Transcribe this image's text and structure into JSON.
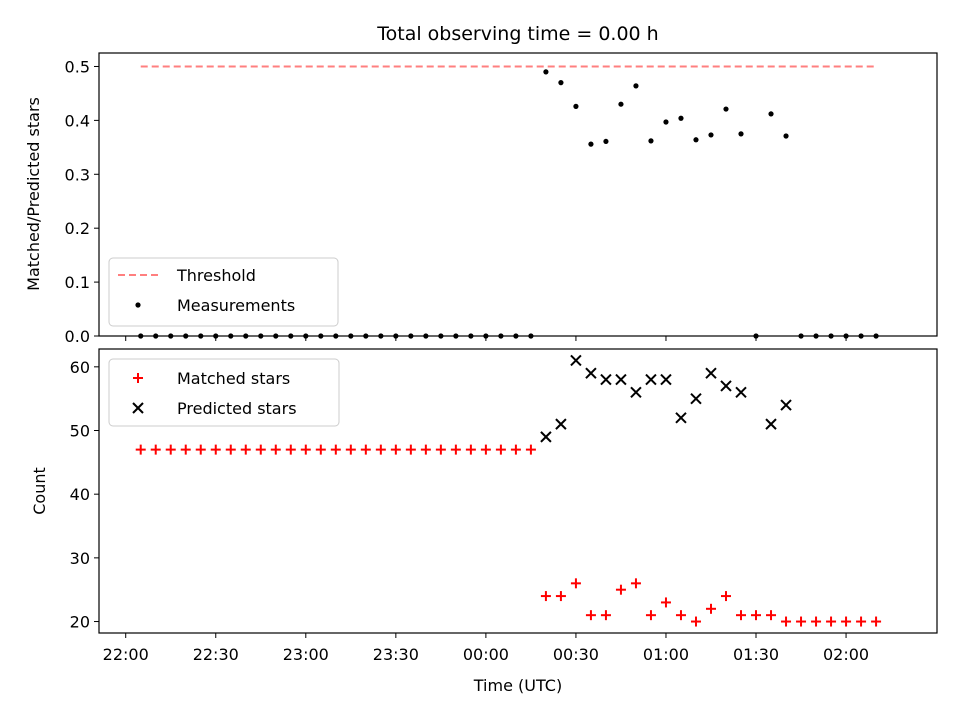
{
  "chart_data": [
    {
      "type": "scatter",
      "title": "Total observing time = 0.00 h",
      "xlabel": "",
      "ylabel": "Matched/Predicted stars",
      "ylim": [
        0,
        0.525
      ],
      "yticks": [
        0.0,
        0.1,
        0.2,
        0.3,
        0.4,
        0.5
      ],
      "ytick_labels": [
        "0.0",
        "0.1",
        "0.2",
        "0.3",
        "0.4",
        "0.5"
      ],
      "legend_position": "lower-left",
      "series": [
        {
          "name": "Threshold",
          "kind": "dashed-line",
          "color": "#ff7f7f",
          "x": [
            "22:05",
            "02:10"
          ],
          "y": [
            0.5,
            0.5
          ]
        },
        {
          "name": "Measurements",
          "kind": "dots",
          "color": "#000000",
          "x": [
            "22:05",
            "22:10",
            "22:15",
            "22:20",
            "22:25",
            "22:30",
            "22:35",
            "22:40",
            "22:45",
            "22:50",
            "22:55",
            "23:00",
            "23:05",
            "23:10",
            "23:15",
            "23:20",
            "23:25",
            "23:30",
            "23:35",
            "23:40",
            "23:45",
            "23:50",
            "23:55",
            "00:00",
            "00:05",
            "00:10",
            "00:15",
            "00:20",
            "00:25",
            "00:30",
            "00:35",
            "00:40",
            "00:45",
            "00:50",
            "00:55",
            "01:00",
            "01:05",
            "01:10",
            "01:15",
            "01:20",
            "01:25",
            "01:30",
            "01:35",
            "01:40",
            "01:45",
            "01:50",
            "01:55",
            "02:00",
            "02:05",
            "02:10"
          ],
          "y": [
            0,
            0,
            0,
            0,
            0,
            0,
            0,
            0,
            0,
            0,
            0,
            0,
            0,
            0,
            0,
            0,
            0,
            0,
            0,
            0,
            0,
            0,
            0,
            0,
            0,
            0,
            0,
            0.49,
            0.47,
            0.426,
            0.356,
            0.361,
            0.43,
            0.464,
            0.362,
            0.397,
            0.404,
            0.364,
            0.373,
            0.421,
            0.375,
            0,
            0.412,
            0.371,
            0,
            0,
            0,
            0,
            0,
            0
          ]
        }
      ]
    },
    {
      "type": "scatter",
      "title": "",
      "xlabel": "Time (UTC)",
      "ylabel": "Count",
      "ylim": [
        18.2,
        62.8
      ],
      "yticks": [
        20,
        30,
        40,
        50,
        60
      ],
      "ytick_labels": [
        "20",
        "30",
        "40",
        "50",
        "60"
      ],
      "xtick_labels": [
        "22:00",
        "22:30",
        "23:00",
        "23:30",
        "00:00",
        "00:30",
        "01:00",
        "01:30",
        "02:00"
      ],
      "legend_position": "upper-left",
      "series": [
        {
          "name": "Matched stars",
          "marker": "+",
          "color": "#ff0000",
          "x": [
            "22:05",
            "22:10",
            "22:15",
            "22:20",
            "22:25",
            "22:30",
            "22:35",
            "22:40",
            "22:45",
            "22:50",
            "22:55",
            "23:00",
            "23:05",
            "23:10",
            "23:15",
            "23:20",
            "23:25",
            "23:30",
            "23:35",
            "23:40",
            "23:45",
            "23:50",
            "23:55",
            "00:00",
            "00:05",
            "00:10",
            "00:15",
            "00:20",
            "00:25",
            "00:30",
            "00:35",
            "00:40",
            "00:45",
            "00:50",
            "00:55",
            "01:00",
            "01:05",
            "01:10",
            "01:15",
            "01:20",
            "01:25",
            "01:30",
            "01:35",
            "01:40",
            "01:45",
            "01:50",
            "01:55",
            "02:00",
            "02:05",
            "02:10"
          ],
          "y": [
            47,
            47,
            47,
            47,
            47,
            47,
            47,
            47,
            47,
            47,
            47,
            47,
            47,
            47,
            47,
            47,
            47,
            47,
            47,
            47,
            47,
            47,
            47,
            47,
            47,
            47,
            47,
            24,
            24,
            26,
            21,
            21,
            25,
            26,
            21,
            23,
            21,
            20,
            22,
            24,
            21,
            21,
            21,
            20,
            20,
            20,
            20,
            20,
            20,
            20
          ]
        },
        {
          "name": "Predicted stars",
          "marker": "x",
          "color": "#000000",
          "x": [
            "00:20",
            "00:25",
            "00:30",
            "00:35",
            "00:40",
            "00:45",
            "00:50",
            "00:55",
            "01:00",
            "01:05",
            "01:10",
            "01:15",
            "01:20",
            "01:25",
            "01:35",
            "01:40"
          ],
          "y": [
            49,
            51,
            61,
            59,
            58,
            58,
            56,
            58,
            58,
            52,
            55,
            59,
            57,
            56,
            51,
            54
          ]
        }
      ]
    }
  ]
}
